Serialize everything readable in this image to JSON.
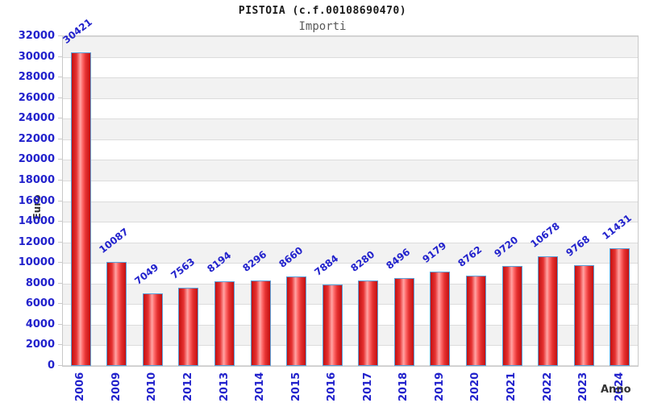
{
  "colors": {
    "title_black": "#1a1a1a",
    "subtitle_gray": "#595959",
    "axis_label_blue": "#2222cc",
    "axis_title": "#333333",
    "band_gray": "#f2f2f2",
    "band_white": "#ffffff",
    "gridline": "#dcdcdc",
    "plot_border": "#c9c9c9",
    "bar_border": "#5a9fd8",
    "bar_dark": "#c41010",
    "bar_mid": "#e63333",
    "bar_light": "#ffa5a5"
  },
  "chart_data": {
    "type": "bar",
    "title": "PISTOIA (c.f.00108690470)",
    "subtitle": "Importi",
    "xlabel": "Anno",
    "ylabel": "Euro",
    "categories": [
      "2006",
      "2009",
      "2010",
      "2012",
      "2013",
      "2014",
      "2015",
      "2016",
      "2017",
      "2018",
      "2019",
      "2020",
      "2021",
      "2022",
      "2023",
      "2024"
    ],
    "values": [
      30421,
      10087,
      7049,
      7563,
      8194,
      8296,
      8660,
      7884,
      8280,
      8496,
      9179,
      8762,
      9720,
      10678,
      9768,
      11431
    ],
    "bar_labels": [
      "30421",
      "10087",
      "7049",
      "7563",
      "8194",
      "8296",
      "8660",
      "7884",
      "8280",
      "8496",
      "9179",
      "8762",
      "9720",
      "10678",
      "9768",
      "11431"
    ],
    "ylim": [
      0,
      32000
    ],
    "ytick_step": 2000,
    "yticks": [
      0,
      2000,
      4000,
      6000,
      8000,
      10000,
      12000,
      14000,
      16000,
      18000,
      20000,
      22000,
      24000,
      26000,
      28000,
      30000,
      32000
    ],
    "legend": "none",
    "grid": "horizontal-bands-alternating"
  }
}
